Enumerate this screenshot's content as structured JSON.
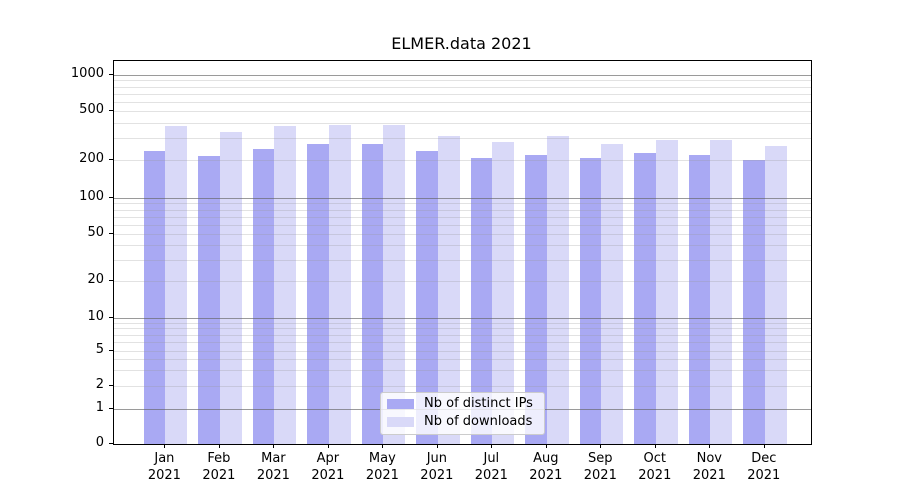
{
  "title": "ELMER.data 2021",
  "chart_data": {
    "type": "bar",
    "title": "ELMER.data 2021",
    "xlabel": "",
    "ylabel": "",
    "year": "2021",
    "categories": [
      "Jan 2021",
      "Feb 2021",
      "Mar 2021",
      "Apr 2021",
      "May 2021",
      "Jun 2021",
      "Jul 2021",
      "Aug 2021",
      "Sep 2021",
      "Oct 2021",
      "Nov 2021",
      "Dec 2021"
    ],
    "months": [
      "Jan",
      "Feb",
      "Mar",
      "Apr",
      "May",
      "Jun",
      "Jul",
      "Aug",
      "Sep",
      "Oct",
      "Nov",
      "Dec"
    ],
    "series": [
      {
        "name": "Nb of distinct IPs",
        "color": "#a9a9f3",
        "values": [
          235,
          216,
          244,
          271,
          271,
          235,
          208,
          221,
          208,
          228,
          218,
          201
        ]
      },
      {
        "name": "Nb of downloads",
        "color": "#d9d9f8",
        "values": [
          380,
          338,
          376,
          385,
          385,
          315,
          280,
          312,
          270,
          289,
          289,
          261
        ]
      }
    ],
    "y_scale": "log-with-zero",
    "ylim": [
      0,
      1300
    ],
    "y_tick_values": [
      0,
      1,
      2,
      5,
      10,
      20,
      50,
      100,
      200,
      500,
      1000
    ],
    "major_gridline_values": [
      1,
      10,
      100,
      1000
    ],
    "minor_gridline_values": [
      2,
      3,
      4,
      5,
      6,
      7,
      8,
      9,
      20,
      30,
      40,
      50,
      60,
      70,
      80,
      90,
      200,
      300,
      400,
      500,
      600,
      700,
      800,
      900
    ],
    "grid": true,
    "legend_position": "lower center"
  },
  "legend": {
    "entries": [
      "Nb of distinct IPs",
      "Nb of downloads"
    ]
  }
}
